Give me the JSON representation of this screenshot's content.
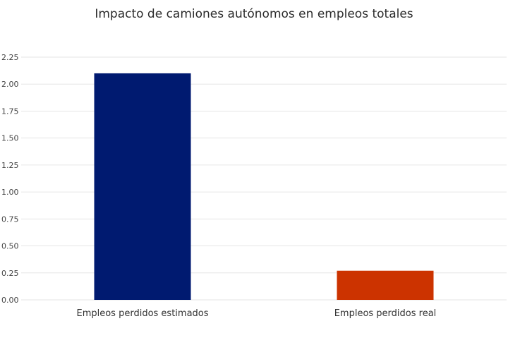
{
  "chart_data": {
    "type": "bar",
    "title": "Impacto de camiones autónomos en empleos totales",
    "categories": [
      "Empleos perdidos estimados",
      "Empleos perdidos real"
    ],
    "values": [
      2.1,
      0.27
    ],
    "colors": [
      "#001a70",
      "#cc3300"
    ],
    "xlabel": "",
    "ylabel": "",
    "ylim": [
      0,
      2.25
    ],
    "yticks": [
      "0.00",
      "0.25",
      "0.50",
      "0.75",
      "1.00",
      "1.25",
      "1.50",
      "1.75",
      "2.00",
      "2.25"
    ],
    "grid": true,
    "legend": "none"
  }
}
